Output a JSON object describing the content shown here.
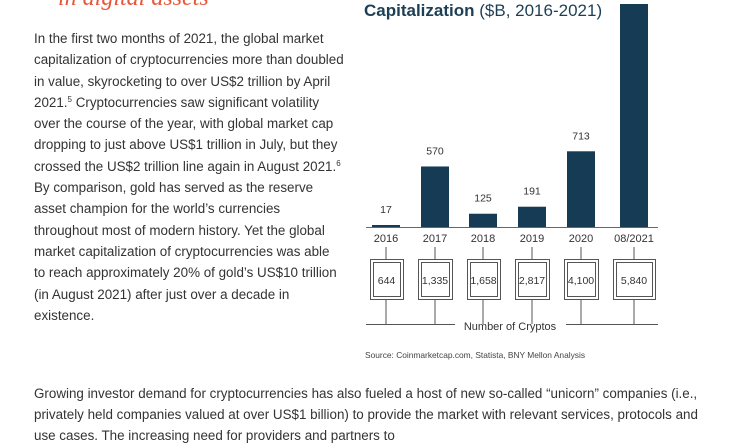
{
  "heading_fragment": "in digital assets",
  "body_paragraph": {
    "part1": "In the first two months of 2021, the global market capitalization of cryptocurrencies more than doubled in value, skyrocketing to over US$2 trillion by April 2021.",
    "sup1": "5",
    "part2": " Cryptocurrencies saw significant volatility over the course of the year, with global market cap dropping to just above US$1 trillion in July, but they crossed the US$2 trillion line again in August 2021.",
    "sup2": "6",
    "part3": " By comparison, gold has served as the reserve asset champion for the world’s currencies throughout most of modern history. Yet the global market capitalization of cryptocurrencies was able to reach approximately 20% of gold’s US$10 trillion (in August 2021) after just over a decade in existence."
  },
  "chart_data": {
    "type": "bar",
    "title": "Capitalization",
    "subtitle": "($B, 2016-2021)",
    "categories": [
      "2016",
      "2017",
      "2018",
      "2019",
      "2020",
      "08/2021"
    ],
    "values": [
      17,
      570,
      125,
      191,
      713,
      2100
    ],
    "value_labels": [
      "17",
      "570",
      "125",
      "191",
      "713",
      ""
    ],
    "ylim": [
      0,
      2100
    ],
    "grid": false,
    "bar_color": "#163c55",
    "secondary_series": {
      "name": "Number of Cryptos",
      "values": [
        644,
        1335,
        1658,
        2817,
        4100,
        5840
      ],
      "labels": [
        "644",
        "1,335",
        "1,658",
        "2,817",
        "4,100",
        "5,840"
      ]
    }
  },
  "source_note": "Source: Coinmarketcap.com, Statista, BNY Mellon Analysis",
  "bottom_paragraph": "Growing investor demand for cryptocurrencies has also fueled a host of new so-called “unicorn” companies (i.e., privately held companies valued at over US$1 billion) to provide the market with relevant services, protocols and use cases. The increasing need for providers and partners to"
}
